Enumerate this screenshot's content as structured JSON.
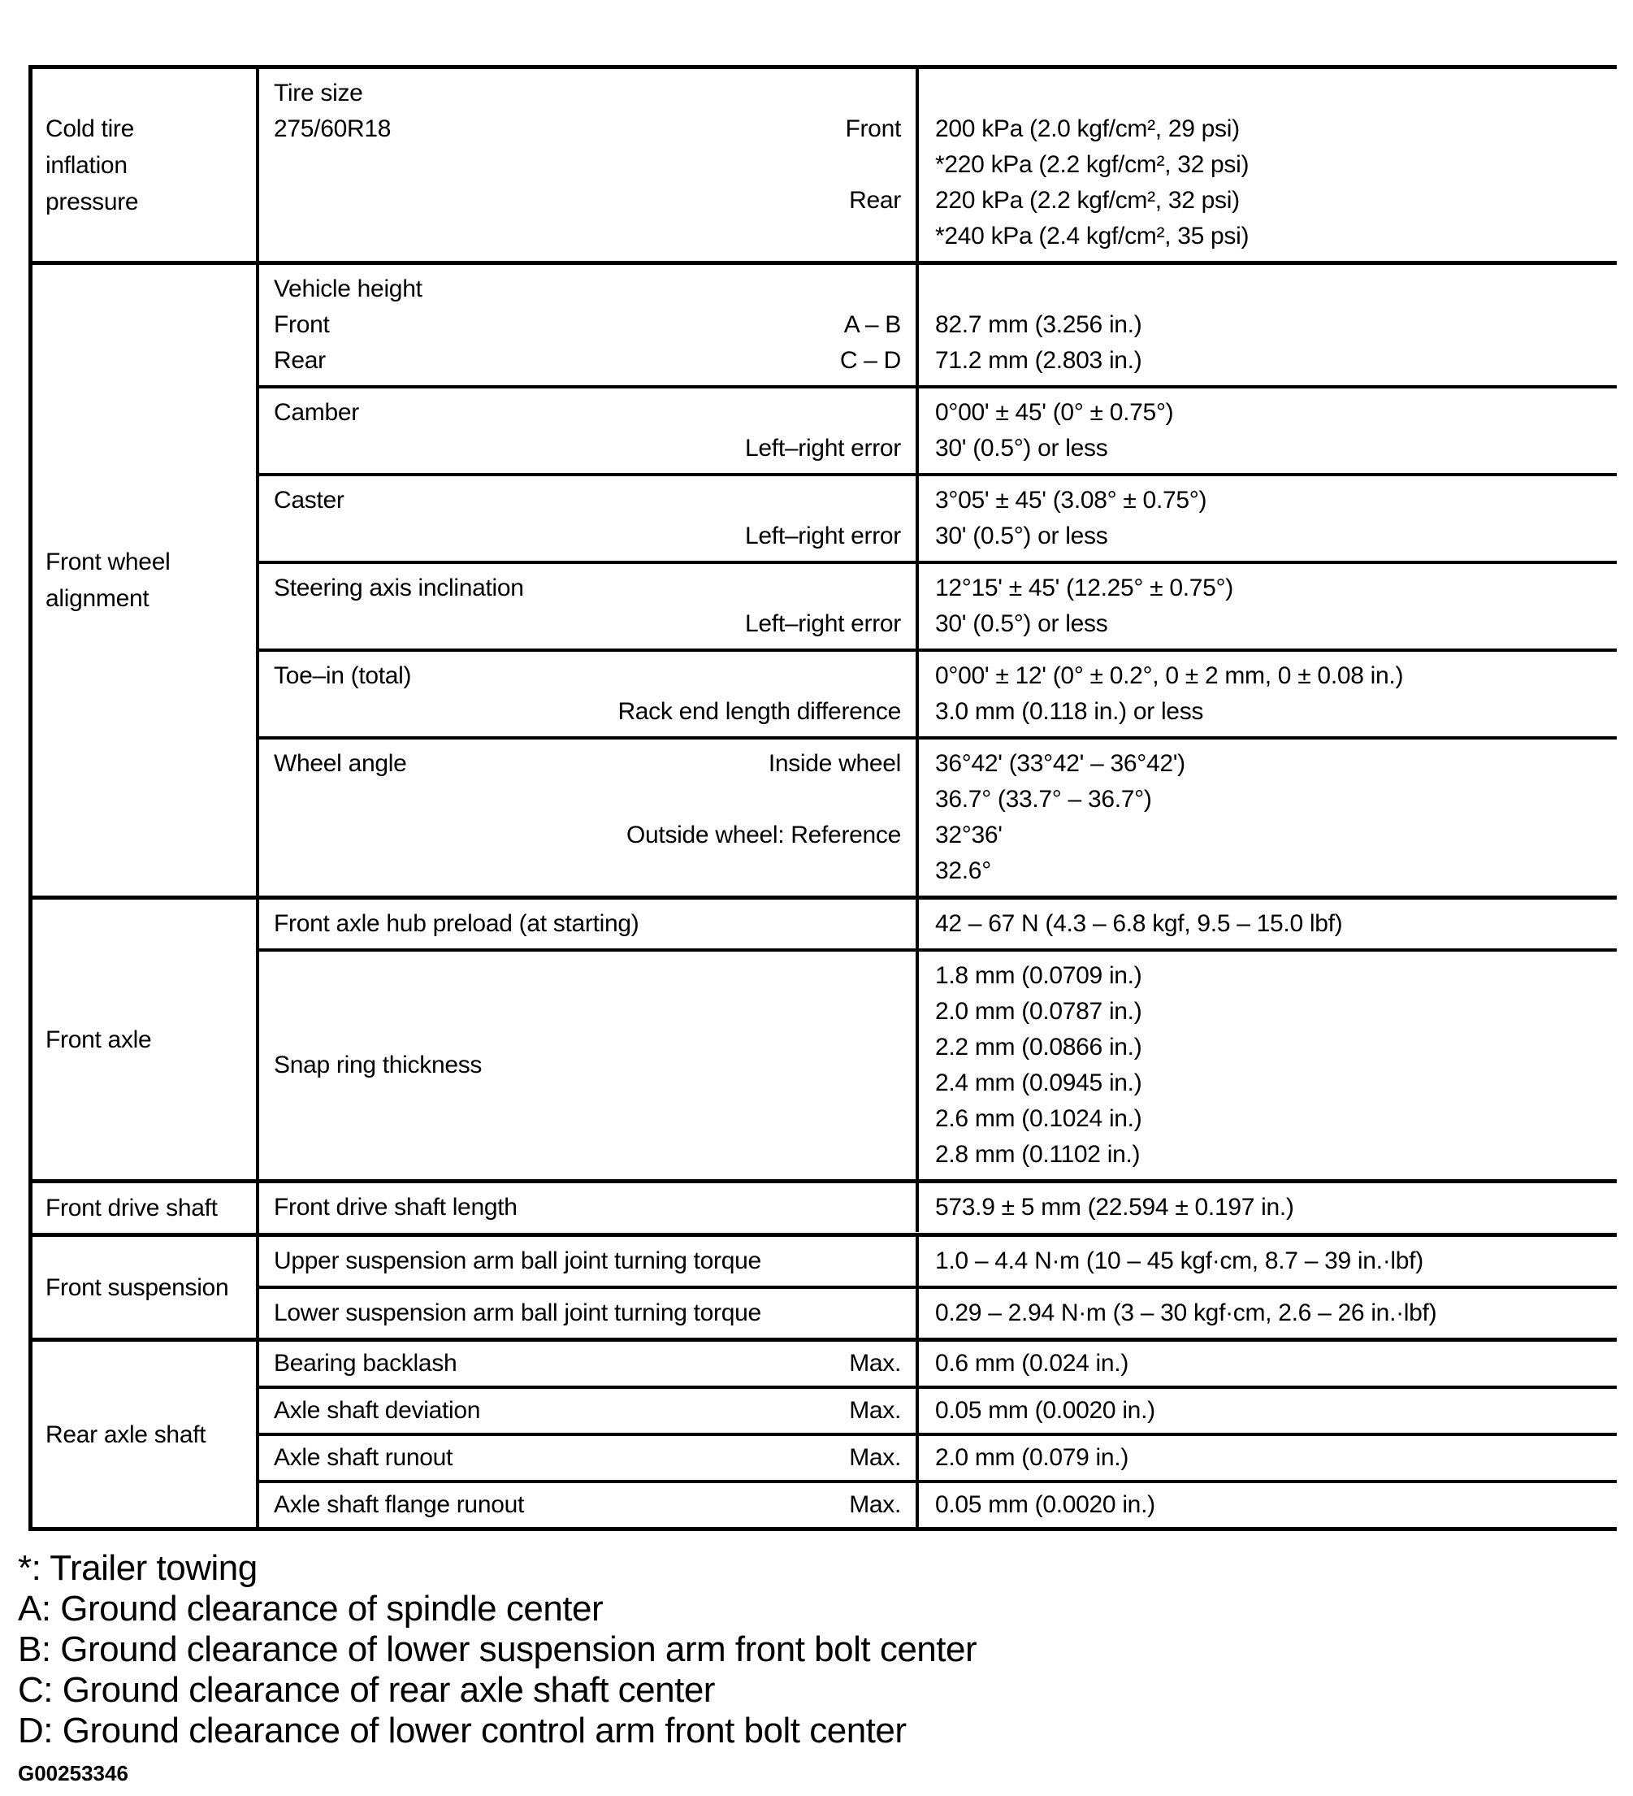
{
  "table": {
    "cold_tire": {
      "category_lines": [
        "Cold tire",
        "inflation",
        "pressure"
      ],
      "tire_size_label": "Tire size",
      "tire_size": "275/60R18",
      "front_label": "Front",
      "rear_label": "Rear",
      "values": [
        "200 kPa (2.0 kgf/cm², 29 psi)",
        "*220 kPa (2.2 kgf/cm², 32 psi)",
        "220 kPa (2.2 kgf/cm², 32 psi)",
        "*240 kPa (2.4 kgf/cm², 35 psi)"
      ]
    },
    "front_wheel_alignment": {
      "category_lines": [
        "Front wheel",
        "alignment"
      ],
      "vehicle_height": {
        "title": "Vehicle height",
        "front_label": "Front",
        "front_ref": "A – B",
        "front_value": "82.7 mm (3.256 in.)",
        "rear_label": "Rear",
        "rear_ref": "C – D",
        "rear_value": "71.2 mm (2.803 in.)"
      },
      "camber": {
        "label": "Camber",
        "value": "0°00' ± 45' (0° ± 0.75°)",
        "sub_label": "Left–right error",
        "sub_value": "30' (0.5°) or less"
      },
      "caster": {
        "label": "Caster",
        "value": "3°05' ± 45' (3.08° ± 0.75°)",
        "sub_label": "Left–right error",
        "sub_value": "30' (0.5°) or less"
      },
      "steering_axis_inclination": {
        "label": "Steering axis inclination",
        "value": "12°15' ± 45' (12.25° ± 0.75°)",
        "sub_label": "Left–right error",
        "sub_value": "30' (0.5°) or less"
      },
      "toe_in": {
        "label": "Toe–in (total)",
        "value": "0°00' ± 12' (0° ± 0.2°, 0 ± 2 mm, 0 ± 0.08 in.)",
        "sub_label": "Rack end length difference",
        "sub_value": "3.0 mm (0.118 in.) or less"
      },
      "wheel_angle": {
        "label": "Wheel angle",
        "inside_label": "Inside wheel",
        "inside_values": [
          "36°42' (33°42' – 36°42')",
          "36.7° (33.7° – 36.7°)"
        ],
        "outside_label": "Outside wheel: Reference",
        "outside_values": [
          "32°36'",
          "32.6°"
        ]
      }
    },
    "front_axle": {
      "category_lines": [
        "Front axle"
      ],
      "hub_preload": {
        "label": "Front axle hub preload (at starting)",
        "value": "42 – 67 N (4.3 – 6.8 kgf, 9.5 – 15.0 lbf)"
      },
      "snap_ring": {
        "label": "Snap ring thickness",
        "values": [
          "1.8 mm (0.0709 in.)",
          "2.0 mm (0.0787 in.)",
          "2.2 mm (0.0866 in.)",
          "2.4 mm (0.0945 in.)",
          "2.6 mm (0.1024 in.)",
          "2.8 mm (0.1102 in.)"
        ]
      }
    },
    "front_drive_shaft": {
      "category_lines": [
        "Front drive shaft"
      ],
      "length_label": "Front drive shaft length",
      "length_value": "573.9 ± 5 mm (22.594 ± 0.197 in.)"
    },
    "front_suspension": {
      "category_lines": [
        "Front suspension"
      ],
      "upper": {
        "label": "Upper suspension arm ball joint turning torque",
        "value": "1.0 – 4.4 N·m (10 – 45 kgf·cm, 8.7 – 39 in.·lbf)"
      },
      "lower": {
        "label": "Lower suspension arm ball joint turning torque",
        "value": "0.29 – 2.94 N·m (3 – 30 kgf·cm, 2.6 – 26 in.·lbf)"
      }
    },
    "rear_axle_shaft": {
      "category_lines": [
        "Rear axle shaft"
      ],
      "max_label": "Max.",
      "rows": [
        {
          "label": "Bearing backlash",
          "value": "0.6 mm (0.024 in.)"
        },
        {
          "label": "Axle shaft deviation",
          "value": "0.05 mm (0.0020 in.)"
        },
        {
          "label": "Axle shaft runout",
          "value": "2.0 mm (0.079 in.)"
        },
        {
          "label": "Axle shaft flange runout",
          "value": "0.05 mm (0.0020 in.)"
        }
      ]
    }
  },
  "footnotes": [
    "*: Trailer towing",
    "A: Ground clearance of spindle center",
    "B: Ground clearance of lower suspension arm front bolt center",
    "C: Ground clearance of rear axle shaft center",
    "D: Ground clearance of lower control arm front bolt center"
  ],
  "figure_code": "G00253346"
}
